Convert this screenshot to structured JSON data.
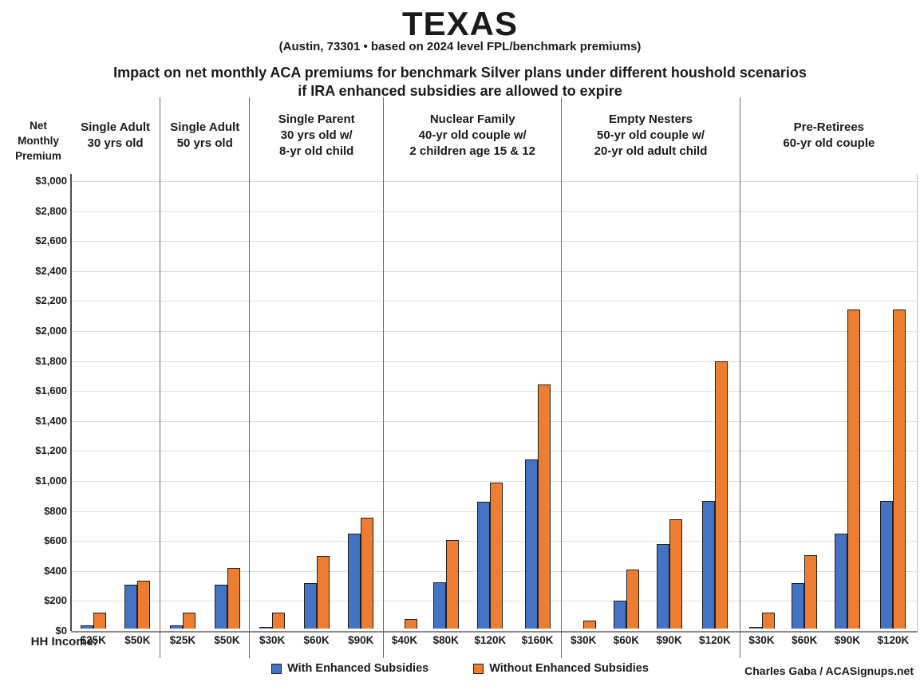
{
  "header": {
    "title": "TEXAS",
    "subtitle": "(Austin, 73301 • based on 2024 level FPL/benchmark premiums)",
    "headline_line1": "Impact on net monthly ACA premiums for benchmark Silver plans under different houshold scenarios",
    "headline_line2": "if IRA enhanced subsidies are allowed to expire"
  },
  "footer": {
    "credit": "Charles Gaba / ACASignups.net"
  },
  "colors": {
    "with_subsidies": "#4472C4",
    "without_subsidies": "#ED7D31",
    "gridline": "#DEDEDE",
    "separator": "#6B6B6B"
  },
  "chart_data": {
    "type": "bar",
    "y_axis_title": "Net\nMonthly\nPremium",
    "x_axis_title": "HH Income:",
    "ylim": [
      0,
      3000
    ],
    "y_tick_step": 200,
    "y_tick_labels": [
      "$0",
      "$200",
      "$400",
      "$600",
      "$800",
      "$1,000",
      "$1,200",
      "$1,400",
      "$1,600",
      "$1,800",
      "$2,000",
      "$2,200",
      "$2,400",
      "$2,600",
      "$2,800",
      "$3,000"
    ],
    "grid": true,
    "legend_position": "bottom",
    "series": [
      {
        "name": "With Enhanced Subsidies",
        "color": "#4472C4"
      },
      {
        "name": "Without Enhanced Subsidies",
        "color": "#ED7D31"
      }
    ],
    "groups": [
      {
        "header": "Single Adult\n30 yrs old",
        "categories": [
          "$25K",
          "$50K"
        ],
        "series_values": [
          [
            20,
            295
          ],
          [
            105,
            320
          ]
        ]
      },
      {
        "header": "Single Adult\n50 yrs old",
        "categories": [
          "$25K",
          "$50K"
        ],
        "series_values": [
          [
            20,
            295
          ],
          [
            105,
            405
          ]
        ]
      },
      {
        "header": "Single Parent\n30 yrs old w/\n8-yr old child",
        "categories": [
          "$30K",
          "$60K",
          "$90K"
        ],
        "series_values": [
          [
            5,
            305,
            635
          ],
          [
            105,
            485,
            740
          ]
        ]
      },
      {
        "header": "Nuclear Family\n40-yr old couple w/\n2 children age 15 & 12",
        "categories": [
          "$40K",
          "$80K",
          "$120K",
          "$160K"
        ],
        "series_values": [
          [
            0,
            310,
            845,
            1130
          ],
          [
            65,
            590,
            975,
            1625
          ]
        ]
      },
      {
        "header": "Empty Nesters\n50-yr old couple w/\n20-yr old adult child",
        "categories": [
          "$30K",
          "$60K",
          "$90K",
          "$120K"
        ],
        "series_values": [
          [
            0,
            185,
            565,
            850
          ],
          [
            55,
            395,
            730,
            1780
          ]
        ]
      },
      {
        "header": "Pre-Retirees\n60-yr old couple",
        "categories": [
          "$30K",
          "$60K",
          "$90K",
          "$120K"
        ],
        "series_values": [
          [
            5,
            305,
            635,
            850
          ],
          [
            105,
            490,
            2125,
            2125
          ]
        ]
      }
    ]
  }
}
